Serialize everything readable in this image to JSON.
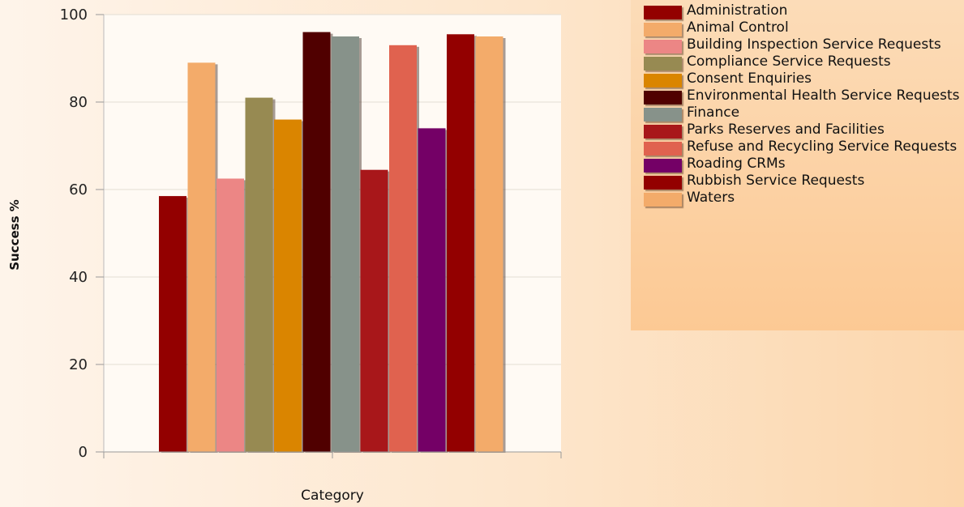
{
  "chart_data": {
    "type": "bar",
    "title": "",
    "xlabel": "Category",
    "ylabel": "Success %",
    "ylim": [
      0,
      100
    ],
    "yticks": [
      0,
      20,
      40,
      60,
      80,
      100
    ],
    "grid": true,
    "legend_position": "right",
    "series": [
      {
        "name": "Administration",
        "value": 58.5,
        "color": "#930000"
      },
      {
        "name": "Animal Control",
        "value": 89,
        "color": "#f3ab6a"
      },
      {
        "name": "Building Inspection Service Requests",
        "value": 62.5,
        "color": "#ec8685"
      },
      {
        "name": "Compliance Service Requests",
        "value": 81,
        "color": "#978a52"
      },
      {
        "name": "Consent Enquiries",
        "value": 76,
        "color": "#da8500"
      },
      {
        "name": "Environmental Health Service Requests",
        "value": 96,
        "color": "#500000"
      },
      {
        "name": "Finance",
        "value": 95,
        "color": "#87928a"
      },
      {
        "name": "Parks Reserves and Facilities",
        "value": 64.5,
        "color": "#a8171a"
      },
      {
        "name": "Refuse and Recycling Service Requests",
        "value": 93,
        "color": "#e0624f"
      },
      {
        "name": "Roading CRMs",
        "value": 74,
        "color": "#740066"
      },
      {
        "name": "Rubbish Service Requests",
        "value": 95.5,
        "color": "#930000"
      },
      {
        "name": "Waters",
        "value": 95,
        "color": "#f3ab6a"
      }
    ]
  }
}
